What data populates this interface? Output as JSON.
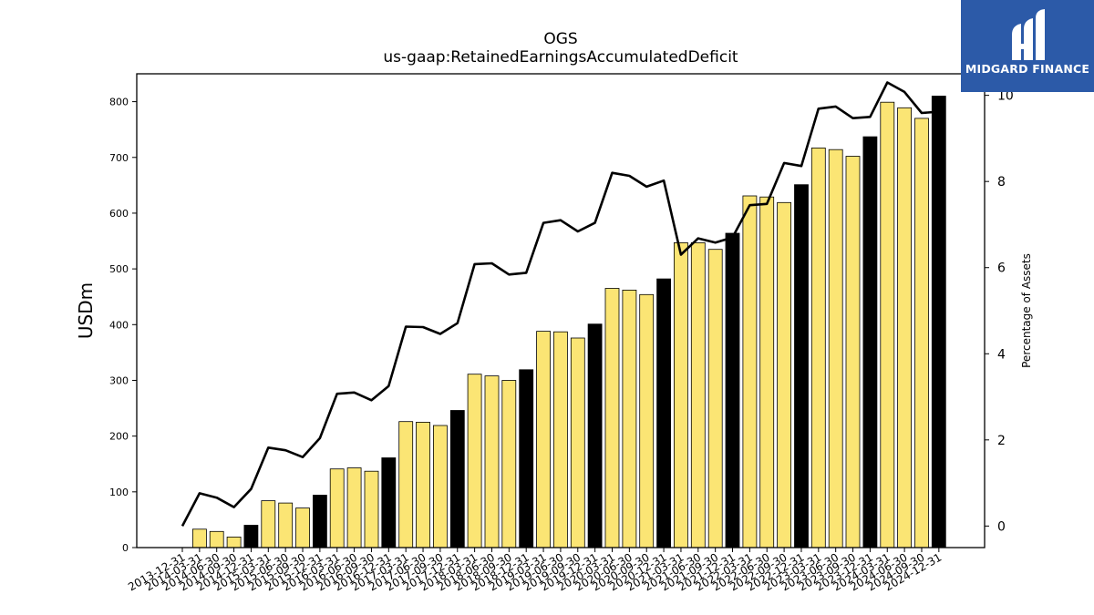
{
  "chart_data": {
    "type": "bar",
    "title": "OGS",
    "subtitle": "us-gaap:RetainedEarningsAccumulatedDeficit",
    "ylabel": "USDm",
    "y2label": "Percentage of Assets",
    "ylim": [
      0,
      850
    ],
    "y2lim": [
      -0.5,
      10.5
    ],
    "yticks": [
      0,
      100,
      200,
      300,
      400,
      500,
      600,
      700,
      800
    ],
    "y2ticks": [
      0,
      2,
      4,
      6,
      8,
      10
    ],
    "categories": [
      "2013-12-31",
      "2014-03-31",
      "2014-06-30",
      "2014-09-30",
      "2014-12-31",
      "2015-03-31",
      "2015-06-30",
      "2015-09-30",
      "2015-12-31",
      "2016-03-31",
      "2016-06-30",
      "2016-09-30",
      "2016-12-31",
      "2017-03-31",
      "2017-06-30",
      "2017-09-30",
      "2017-12-31",
      "2018-03-31",
      "2018-06-30",
      "2018-09-30",
      "2018-12-31",
      "2019-03-31",
      "2019-06-30",
      "2019-09-30",
      "2019-12-31",
      "2020-03-31",
      "2020-06-30",
      "2020-09-30",
      "2020-12-31",
      "2021-03-31",
      "2021-06-30",
      "2021-09-30",
      "2021-12-31",
      "2022-03-31",
      "2022-06-30",
      "2022-09-30",
      "2022-12-31",
      "2023-03-31",
      "2023-06-30",
      "2023-09-30",
      "2023-12-31",
      "2024-03-31",
      "2024-06-30",
      "2024-09-30",
      "2024-12-31"
    ],
    "series": [
      {
        "type": "bar",
        "values": [
          0,
          33,
          29,
          19,
          40,
          84,
          80,
          71,
          94,
          141,
          143,
          137,
          161,
          226,
          225,
          219,
          246,
          311,
          308,
          300,
          319,
          388,
          387,
          376,
          401,
          465,
          462,
          454,
          482,
          547,
          547,
          535,
          564,
          631,
          629,
          619,
          651,
          717,
          714,
          702,
          737,
          799,
          789,
          770,
          810
        ],
        "highlight": "year-end (Q4) bars"
      },
      {
        "type": "line",
        "axis": "right",
        "values": [
          0.0,
          0.76,
          0.66,
          0.44,
          0.86,
          1.82,
          1.76,
          1.6,
          2.04,
          3.07,
          3.1,
          2.92,
          3.25,
          4.63,
          4.62,
          4.46,
          4.71,
          6.08,
          6.1,
          5.84,
          5.88,
          7.04,
          7.1,
          6.84,
          7.04,
          8.2,
          8.13,
          7.88,
          8.02,
          6.3,
          6.68,
          6.58,
          6.7,
          7.45,
          7.48,
          8.43,
          8.36,
          9.69,
          9.74,
          9.47,
          9.5,
          10.3,
          10.08,
          9.59,
          9.62
        ]
      }
    ],
    "colors": {
      "bar": "#fbe574",
      "bar_year_end": "#000000",
      "bar_edge": "#000000",
      "line": "#000000"
    },
    "grid": false,
    "legend": "none"
  },
  "logo": {
    "text": "MIDGARD FINANCE",
    "background": "#2c5aa8"
  }
}
